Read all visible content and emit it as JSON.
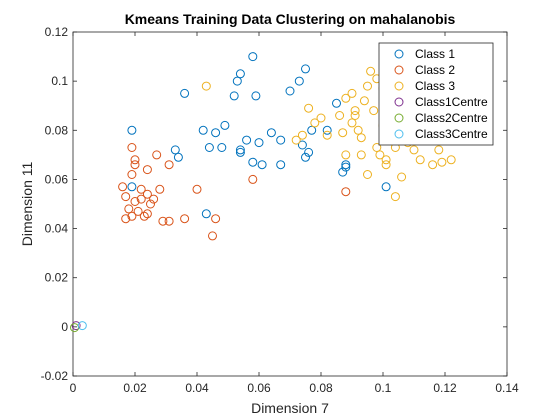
{
  "chart_data": {
    "type": "scatter",
    "title": "Kmeans Training Data Clustering on mahalanobis",
    "xlabel": "Dimension 7",
    "ylabel": "Dimension 11",
    "xlim": [
      0,
      0.14
    ],
    "ylim": [
      -0.02,
      0.12
    ],
    "xticks": [
      0,
      0.02,
      0.04,
      0.06,
      0.08,
      0.1,
      0.12,
      0.14
    ],
    "yticks": [
      -0.02,
      0,
      0.02,
      0.04,
      0.06,
      0.08,
      0.1,
      0.12
    ],
    "xtick_labels": [
      "0",
      "0.02",
      "0.04",
      "0.06",
      "0.08",
      "0.1",
      "0.12",
      "0.14"
    ],
    "ytick_labels": [
      "-0.02",
      "0",
      "0.02",
      "0.04",
      "0.06",
      "0.08",
      "0.1",
      "0.12"
    ],
    "grid": false,
    "legend_position": "top-right",
    "marker": "open-circle",
    "series": [
      {
        "name": "Class 1",
        "color": "#0072BD",
        "points": [
          [
            0.058,
            0.11
          ],
          [
            0.054,
            0.103
          ],
          [
            0.053,
            0.1
          ],
          [
            0.075,
            0.105
          ],
          [
            0.073,
            0.1
          ],
          [
            0.036,
            0.095
          ],
          [
            0.052,
            0.094
          ],
          [
            0.059,
            0.094
          ],
          [
            0.07,
            0.096
          ],
          [
            0.085,
            0.091
          ],
          [
            0.082,
            0.08
          ],
          [
            0.049,
            0.082
          ],
          [
            0.042,
            0.08
          ],
          [
            0.019,
            0.08
          ],
          [
            0.046,
            0.079
          ],
          [
            0.064,
            0.079
          ],
          [
            0.077,
            0.08
          ],
          [
            0.033,
            0.072
          ],
          [
            0.044,
            0.073
          ],
          [
            0.048,
            0.073
          ],
          [
            0.056,
            0.076
          ],
          [
            0.06,
            0.075
          ],
          [
            0.067,
            0.076
          ],
          [
            0.074,
            0.074
          ],
          [
            0.076,
            0.071
          ],
          [
            0.054,
            0.071
          ],
          [
            0.054,
            0.072
          ],
          [
            0.034,
            0.069
          ],
          [
            0.058,
            0.067
          ],
          [
            0.061,
            0.066
          ],
          [
            0.067,
            0.066
          ],
          [
            0.075,
            0.069
          ],
          [
            0.088,
            0.066
          ],
          [
            0.088,
            0.065
          ],
          [
            0.087,
            0.063
          ],
          [
            0.019,
            0.057
          ],
          [
            0.101,
            0.057
          ],
          [
            0.043,
            0.046
          ]
        ]
      },
      {
        "name": "Class 2",
        "color": "#D95319",
        "points": [
          [
            0.019,
            0.073
          ],
          [
            0.02,
            0.068
          ],
          [
            0.02,
            0.066
          ],
          [
            0.027,
            0.07
          ],
          [
            0.031,
            0.066
          ],
          [
            0.024,
            0.064
          ],
          [
            0.019,
            0.062
          ],
          [
            0.058,
            0.06
          ],
          [
            0.016,
            0.057
          ],
          [
            0.022,
            0.056
          ],
          [
            0.024,
            0.054
          ],
          [
            0.028,
            0.056
          ],
          [
            0.04,
            0.056
          ],
          [
            0.088,
            0.055
          ],
          [
            0.017,
            0.053
          ],
          [
            0.02,
            0.051
          ],
          [
            0.022,
            0.052
          ],
          [
            0.025,
            0.05
          ],
          [
            0.026,
            0.052
          ],
          [
            0.018,
            0.048
          ],
          [
            0.021,
            0.047
          ],
          [
            0.023,
            0.045
          ],
          [
            0.024,
            0.046
          ],
          [
            0.017,
            0.044
          ],
          [
            0.019,
            0.045
          ],
          [
            0.029,
            0.043
          ],
          [
            0.031,
            0.043
          ],
          [
            0.036,
            0.044
          ],
          [
            0.046,
            0.044
          ],
          [
            0.045,
            0.037
          ]
        ]
      },
      {
        "name": "Class 3",
        "color": "#EDB120",
        "points": [
          [
            0.096,
            0.104
          ],
          [
            0.098,
            0.101
          ],
          [
            0.095,
            0.098
          ],
          [
            0.1,
            0.097
          ],
          [
            0.043,
            0.098
          ],
          [
            0.088,
            0.093
          ],
          [
            0.09,
            0.095
          ],
          [
            0.091,
            0.088
          ],
          [
            0.094,
            0.092
          ],
          [
            0.076,
            0.089
          ],
          [
            0.086,
            0.086
          ],
          [
            0.091,
            0.086
          ],
          [
            0.097,
            0.088
          ],
          [
            0.08,
            0.085
          ],
          [
            0.078,
            0.083
          ],
          [
            0.09,
            0.083
          ],
          [
            0.1,
            0.082
          ],
          [
            0.107,
            0.083
          ],
          [
            0.074,
            0.078
          ],
          [
            0.082,
            0.078
          ],
          [
            0.087,
            0.079
          ],
          [
            0.092,
            0.08
          ],
          [
            0.102,
            0.079
          ],
          [
            0.108,
            0.075
          ],
          [
            0.072,
            0.076
          ],
          [
            0.093,
            0.077
          ],
          [
            0.098,
            0.073
          ],
          [
            0.104,
            0.073
          ],
          [
            0.11,
            0.072
          ],
          [
            0.118,
            0.072
          ],
          [
            0.088,
            0.07
          ],
          [
            0.093,
            0.07
          ],
          [
            0.099,
            0.07
          ],
          [
            0.101,
            0.068
          ],
          [
            0.112,
            0.068
          ],
          [
            0.119,
            0.067
          ],
          [
            0.122,
            0.068
          ],
          [
            0.116,
            0.066
          ],
          [
            0.101,
            0.066
          ],
          [
            0.095,
            0.062
          ],
          [
            0.106,
            0.061
          ],
          [
            0.104,
            0.053
          ]
        ]
      },
      {
        "name": "Class1Centre",
        "color": "#7E2F8E",
        "points": [
          [
            0.001,
            0.0005
          ]
        ]
      },
      {
        "name": "Class2Centre",
        "color": "#77AC30",
        "points": [
          [
            0.0005,
            -0.0003
          ]
        ]
      },
      {
        "name": "Class3Centre",
        "color": "#4DBEEE",
        "points": [
          [
            0.003,
            0.0005
          ]
        ]
      }
    ]
  }
}
